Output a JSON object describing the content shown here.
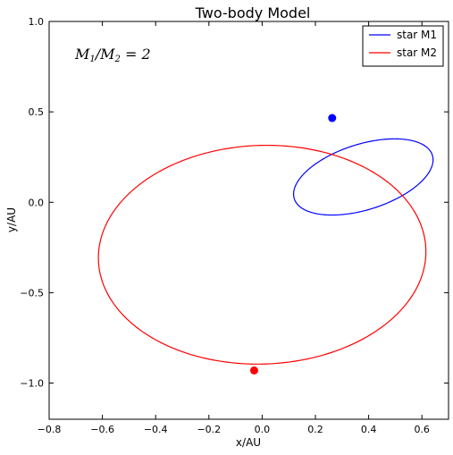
{
  "chart_data": {
    "type": "line",
    "title": "Two-body Model",
    "xlabel": "x/AU",
    "ylabel": "y/AU",
    "xlim": [
      -0.8,
      0.7
    ],
    "ylim": [
      -1.2,
      1.0
    ],
    "xticks": [
      "−0.8",
      "−0.6",
      "−0.4",
      "−0.2",
      "0.0",
      "0.2",
      "0.4",
      "0.6"
    ],
    "xtick_values": [
      -0.8,
      -0.6,
      -0.4,
      -0.2,
      0.0,
      0.2,
      0.4,
      0.6
    ],
    "yticks": [
      "1.0",
      "0.5",
      "0.0",
      "−0.5",
      "−1.0"
    ],
    "ytick_values": [
      1.0,
      0.5,
      0.0,
      -0.5,
      -1.0
    ],
    "grid": false,
    "legend_position": "top-right",
    "annotation": "M1/M2 = 2",
    "series": [
      {
        "name": "star M1",
        "color": "#0000ff",
        "orbit": {
          "cx": 0.38,
          "cy": 0.14,
          "a": 0.29,
          "b": 0.17,
          "rotation_deg": 32
        },
        "marker": {
          "x": 0.263,
          "y": 0.466
        }
      },
      {
        "name": "star M2",
        "color": "#ff0000",
        "orbit": {
          "cx": 0.0,
          "cy": -0.29,
          "a": 0.62,
          "b": 0.6,
          "rotation_deg": 30
        },
        "marker": {
          "x": -0.03,
          "y": -0.93
        }
      }
    ]
  }
}
